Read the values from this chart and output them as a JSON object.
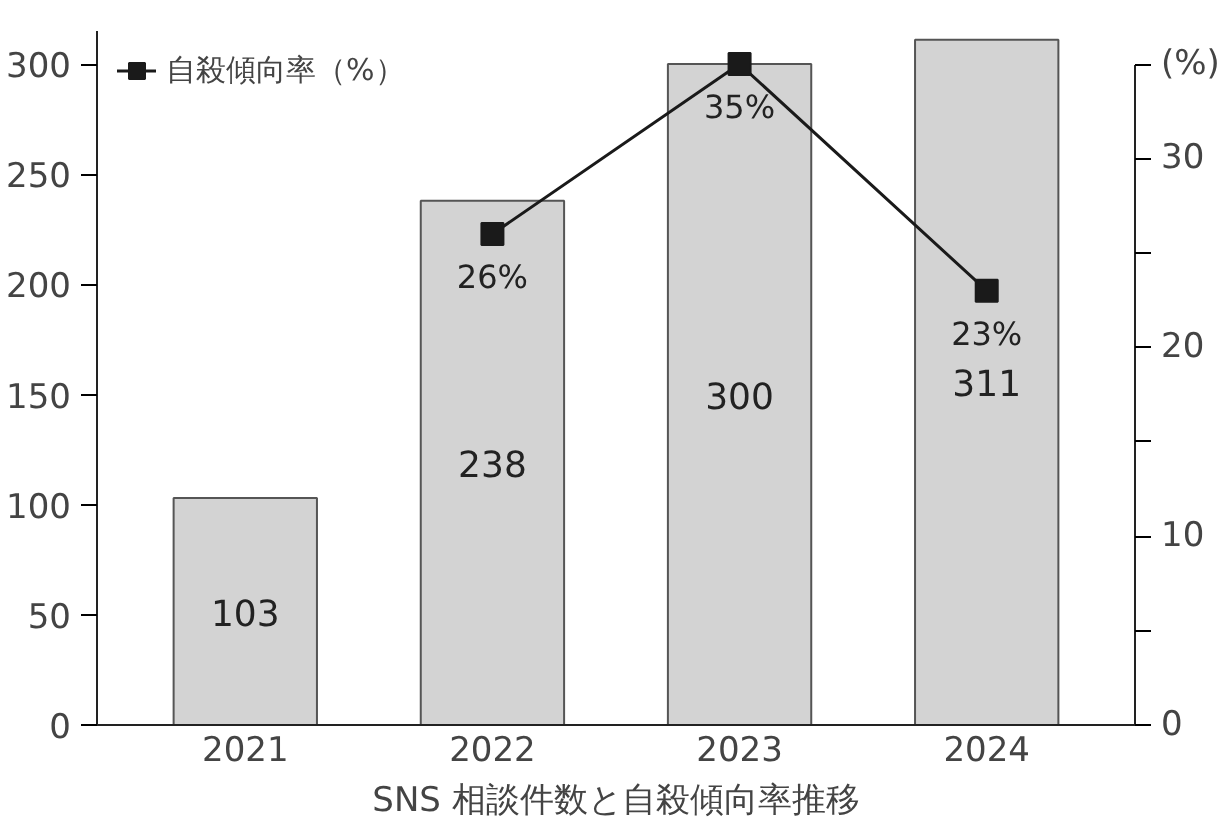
{
  "chart_data": {
    "type": "bar",
    "title": "SNS 相談件数と自殺傾向率推移",
    "categories": [
      "2021",
      "2022",
      "2023",
      "2024"
    ],
    "series": [
      {
        "color": "#d3d3d3",
        "values": [
          103,
          238,
          300,
          311
        ]
      },
      {
        "type": "line",
        "name": "自殺傾向率（%）",
        "color": "#1a1a1a",
        "axis": "y2",
        "marker": "square",
        "values": [
          null,
          26,
          35,
          23
        ],
        "value_labels": [
          null,
          "26%",
          "35%",
          "23%"
        ]
      }
    ],
    "ylim": [
      0,
      315
    ],
    "yticks": [
      0,
      50,
      100,
      150,
      200,
      250,
      300
    ],
    "y2lim": [
      0,
      36.75
    ],
    "y2ticks": [
      0,
      {
        "value": 5,
        "label": null
      },
      10,
      {
        "value": 15,
        "label": null
      },
      20,
      {
        "value": 25,
        "label": null
      },
      30,
      {
        "value": 35,
        "label": "(%)"
      }
    ],
    "data_labels": true,
    "legend": "top left",
    "grid": false
  }
}
